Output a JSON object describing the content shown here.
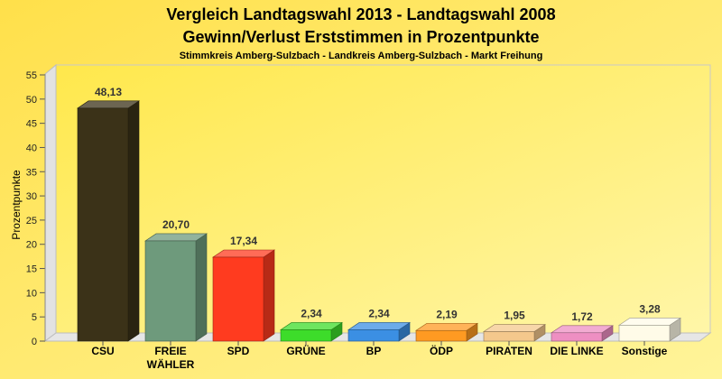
{
  "chart_data": {
    "type": "bar",
    "title_line1": "Vergleich Landtagswahl 2013 - Landtagswahl 2008",
    "title_line2": "Gewinn/Verlust Erststimmen in Prozentpunkte",
    "subtitle": "Stimmkreis Amberg-Sulzbach - Landkreis Amberg-Sulzbach - Markt Freihung",
    "ylabel": "Prozentpunkte",
    "xlabel": "",
    "ylim": [
      0,
      55
    ],
    "yticks": [
      "0",
      "5",
      "10",
      "15",
      "20",
      "25",
      "30",
      "35",
      "40",
      "45",
      "50",
      "55"
    ],
    "grid": false,
    "categories": [
      "CSU",
      "FREIE WÄHLER",
      "SPD",
      "GRÜNE",
      "BP",
      "ÖDP",
      "PIRATEN",
      "DIE LINKE",
      "Sonstige"
    ],
    "category_lines": [
      [
        "CSU"
      ],
      [
        "FREIE",
        "WÄHLER"
      ],
      [
        "SPD"
      ],
      [
        "GRÜNE"
      ],
      [
        "BP"
      ],
      [
        "ÖDP"
      ],
      [
        "PIRATEN"
      ],
      [
        "DIE LINKE"
      ],
      [
        "Sonstige"
      ]
    ],
    "values": [
      48.13,
      20.7,
      17.34,
      2.34,
      2.34,
      2.19,
      1.95,
      1.72,
      3.28
    ],
    "value_labels": [
      "48,13",
      "20,70",
      "17,34",
      "2,34",
      "2,34",
      "2,19",
      "1,95",
      "1,72",
      "3,28"
    ],
    "colors": [
      "#3b3218",
      "#6e9a7c",
      "#ff3b1f",
      "#3ddc2a",
      "#3b8fe3",
      "#ff9a22",
      "#f4c88c",
      "#ee8fc2",
      "#fffbe8"
    ]
  }
}
